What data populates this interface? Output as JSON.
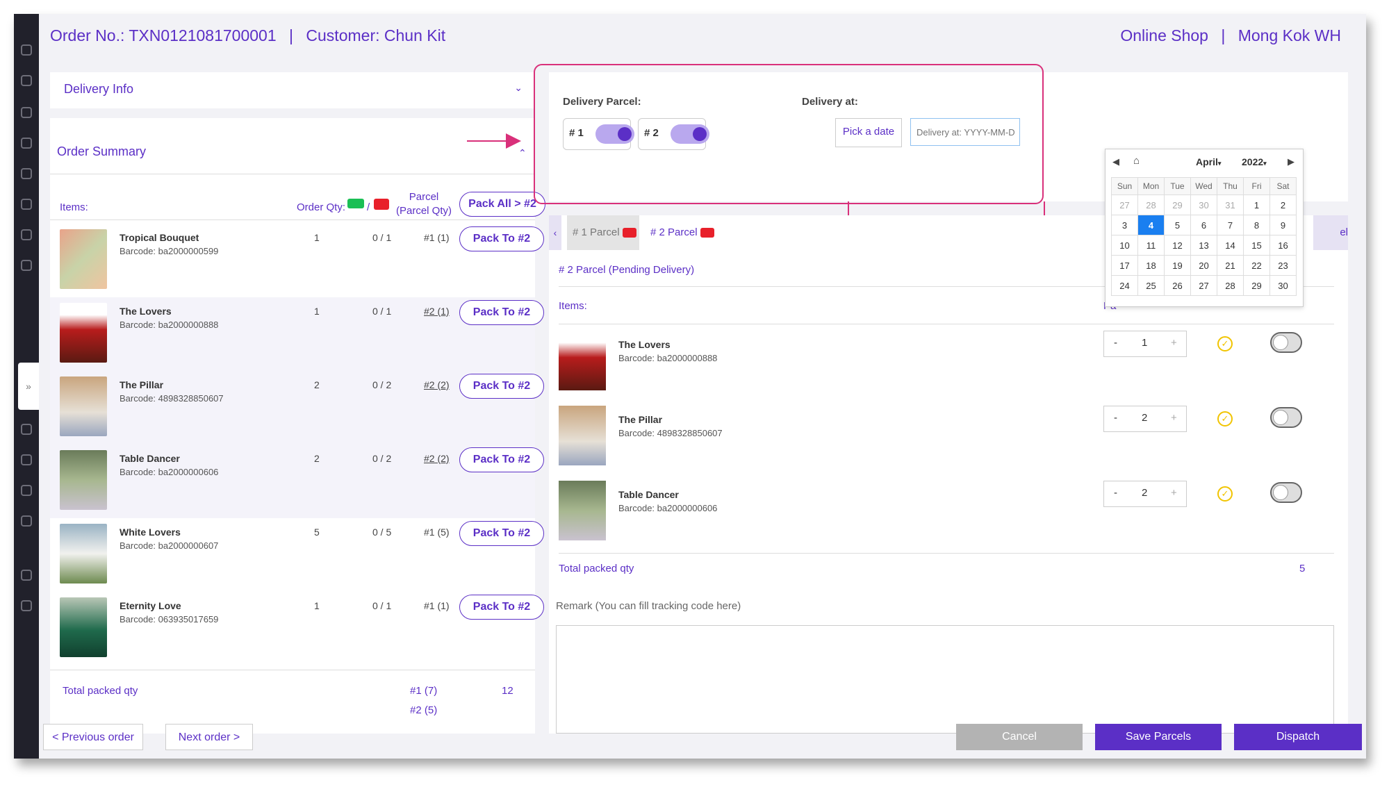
{
  "header": {
    "order_no": "Order No.: TXN0121081700001",
    "separator": "|",
    "customer": "Customer: Chun Kit",
    "shop": "Online Shop",
    "warehouse": "Mong Kok WH"
  },
  "delivery_info": {
    "title": "Delivery Info"
  },
  "order_summary": {
    "title": "Order Summary",
    "col_items": "Items:",
    "col_order_qty": "Order Qty:",
    "col_slash": "/",
    "col_parcel": "Parcel",
    "col_parcel_qty": "(Parcel Qty)",
    "pack_all": "Pack All > #2",
    "rows": [
      {
        "name": "Tropical Bouquet",
        "barcode": "Barcode: ba2000000599",
        "qty": "1",
        "packed": "0 / 1",
        "parcel": "#1 (1)",
        "action": "Pack To #2"
      },
      {
        "name": "The Lovers",
        "barcode": "Barcode: ba2000000888",
        "qty": "1",
        "packed": "0 / 1",
        "parcel": "#2 (1)",
        "action": "Pack To #2"
      },
      {
        "name": "The Pillar",
        "barcode": "Barcode: 4898328850607",
        "qty": "2",
        "packed": "0 / 2",
        "parcel": "#2 (2)",
        "action": "Pack To #2"
      },
      {
        "name": "Table Dancer",
        "barcode": "Barcode: ba2000000606",
        "qty": "2",
        "packed": "0 / 2",
        "parcel": "#2 (2)",
        "action": "Pack To #2"
      },
      {
        "name": "White Lovers",
        "barcode": "Barcode: ba2000000607",
        "qty": "5",
        "packed": "0 / 5",
        "parcel": "#1 (5)",
        "action": "Pack To #2"
      },
      {
        "name": "Eternity Love",
        "barcode": "Barcode: 063935017659",
        "qty": "1",
        "packed": "0 / 1",
        "parcel": "#1 (1)",
        "action": "Pack To #2"
      }
    ],
    "total_label": "Total packed qty",
    "total_p1": "#1 (7)",
    "total_p2": "#2 (5)",
    "total_qty": "12"
  },
  "delivery": {
    "parcel_label": "Delivery Parcel:",
    "at_label": "Delivery at:",
    "parcel1": "# 1",
    "parcel2": "# 2",
    "pick_date": "Pick a date",
    "date_placeholder": "Delivery at: YYYY-MM-D"
  },
  "calendar": {
    "month": "April",
    "year": "2022",
    "weekdays": [
      "Sun",
      "Mon",
      "Tue",
      "Wed",
      "Thu",
      "Fri",
      "Sat"
    ],
    "weeks": [
      [
        "27",
        "28",
        "29",
        "30",
        "31",
        "1",
        "2"
      ],
      [
        "3",
        "4",
        "5",
        "6",
        "7",
        "8",
        "9"
      ],
      [
        "10",
        "11",
        "12",
        "13",
        "14",
        "15",
        "16"
      ],
      [
        "17",
        "18",
        "19",
        "20",
        "21",
        "22",
        "23"
      ],
      [
        "24",
        "25",
        "26",
        "27",
        "28",
        "29",
        "30"
      ]
    ],
    "selected": "4"
  },
  "parcel_tabs": {
    "tab1": "# 1 Parcel",
    "tab2": "# 2 Parcel",
    "status": "# 2 Parcel (Pending Delivery)",
    "items_label": "Items:",
    "pa_fragment": "Pa",
    "el_fragment": "el",
    "rows": [
      {
        "name": "The Lovers",
        "barcode": "Barcode: ba2000000888",
        "qty": "1"
      },
      {
        "name": "The Pillar",
        "barcode": "Barcode: 4898328850607",
        "qty": "2"
      },
      {
        "name": "Table Dancer",
        "barcode": "Barcode: ba2000000606",
        "qty": "2"
      }
    ],
    "minus": "-",
    "plus": "+",
    "total_label": "Total packed qty",
    "total_qty": "5",
    "remark_label": "Remark (You can fill tracking code here)"
  },
  "footer": {
    "prev": "< Previous order",
    "next": "Next order >",
    "cancel": "Cancel",
    "save": "Save Parcels",
    "dispatch": "Dispatch"
  },
  "colors": {
    "accent": "#5b2fc6",
    "highlight": "#d9307a",
    "selected_day": "#1a7ff0"
  }
}
